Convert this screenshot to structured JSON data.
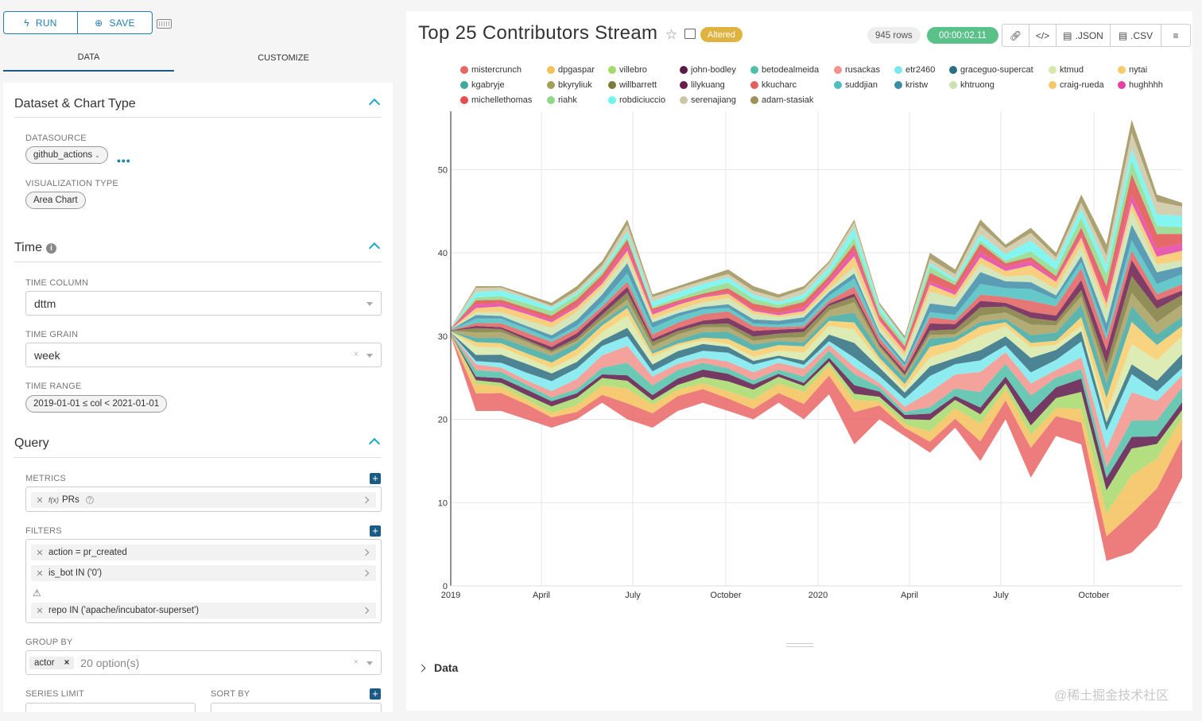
{
  "toolbar": {
    "run_label": "RUN",
    "save_label": "SAVE",
    "run_icon": "bolt-icon",
    "save_icon": "plus-circle-icon"
  },
  "tabs": [
    {
      "label": "DATA"
    },
    {
      "label": "CUSTOMIZE"
    }
  ],
  "dataset_section": {
    "title": "Dataset & Chart Type",
    "datasource_label": "DATASOURCE",
    "datasource_value": "github_actions",
    "viz_type_label": "VISUALIZATION TYPE",
    "viz_type_value": "Area Chart"
  },
  "time_section": {
    "title": "Time",
    "column_label": "TIME COLUMN",
    "column_value": "dttm",
    "grain_label": "TIME GRAIN",
    "grain_value": "week",
    "range_label": "TIME RANGE",
    "range_value": "2019-01-01 ≤ col < 2021-01-01"
  },
  "query_section": {
    "title": "Query",
    "metrics_label": "METRICS",
    "metric_value": "PRs",
    "metric_prefix": "f(x)",
    "filters_label": "FILTERS",
    "filters": [
      "action = pr_created",
      "is_bot IN ('0')",
      "repo IN ('apache/incubator-superset')"
    ],
    "groupby_label": "GROUP BY",
    "groupby_tag": "actor",
    "groupby_placeholder": "20 option(s)",
    "series_limit_label": "SERIES LIMIT",
    "sort_by_label": "SORT BY"
  },
  "header": {
    "title": "Top 25 Contributors Stream",
    "altered_label": "Altered",
    "rows_label": "945 rows",
    "timer_label": "00:00:02.11",
    "json_label": ".JSON",
    "csv_label": ".CSV"
  },
  "data_section_label": "Data",
  "watermark": "@稀土掘金技术社区",
  "colors": {
    "accent": "#1f7fb1",
    "tab_underline": "#1a5b86",
    "altered": "#e0b340",
    "timer": "#5ac189"
  },
  "chart_data": {
    "type": "area",
    "title": "Top 25 Contributors Stream",
    "x_ticks": [
      "2019",
      "April",
      "July",
      "October",
      "2020",
      "April",
      "July",
      "October"
    ],
    "y_ticks": [
      0,
      10,
      20,
      30,
      40,
      50
    ],
    "ylim": [
      0,
      57
    ],
    "xlabel": "",
    "ylabel": "",
    "grid": true,
    "legend_position": "top",
    "series": [
      {
        "name": "mistercrunch",
        "color": "#ea6565",
        "weight": 4.2
      },
      {
        "name": "dpgaspar",
        "color": "#f4c05b",
        "weight": 2.6
      },
      {
        "name": "villebro",
        "color": "#a6d96a",
        "weight": 2.0
      },
      {
        "name": "john-bodley",
        "color": "#5c1848",
        "weight": 1.6
      },
      {
        "name": "betodealmeida",
        "color": "#4fbfa8",
        "weight": 2.0
      },
      {
        "name": "rusackas",
        "color": "#f1928b",
        "weight": 2.4
      },
      {
        "name": "etr2460",
        "color": "#7ae8ec",
        "weight": 2.2
      },
      {
        "name": "graceguo-supercat",
        "color": "#2d6e80",
        "weight": 2.0
      },
      {
        "name": "ktmud",
        "color": "#d7e7a8",
        "weight": 2.0
      },
      {
        "name": "nytai",
        "color": "#f7cb6a",
        "weight": 1.6
      },
      {
        "name": "kgabryje",
        "color": "#3fa8a0",
        "weight": 1.6
      },
      {
        "name": "bkyryliuk",
        "color": "#a69e5c",
        "weight": 1.4
      },
      {
        "name": "willbarrett",
        "color": "#7e7a3c",
        "weight": 1.2
      },
      {
        "name": "lilykuang",
        "color": "#6a1c4c",
        "weight": 1.2
      },
      {
        "name": "kkucharc",
        "color": "#e0605e",
        "weight": 1.4
      },
      {
        "name": "suddjian",
        "color": "#4bbfc0",
        "weight": 1.4
      },
      {
        "name": "kristw",
        "color": "#3e8ca7",
        "weight": 1.4
      },
      {
        "name": "khtruong",
        "color": "#cbe2b0",
        "weight": 1.6
      },
      {
        "name": "craig-rueda",
        "color": "#f6c767",
        "weight": 1.4
      },
      {
        "name": "hughhhh",
        "color": "#e440a5",
        "weight": 0.8
      },
      {
        "name": "michellethomas",
        "color": "#e24f4f",
        "weight": 1.4
      },
      {
        "name": "riahk",
        "color": "#8fd888",
        "weight": 1.2
      },
      {
        "name": "robdiciuccio",
        "color": "#6ff4f0",
        "weight": 1.4
      },
      {
        "name": "serenajiang",
        "color": "#cdc6a4",
        "weight": 1.2
      },
      {
        "name": "adam-stasiak",
        "color": "#9e9157",
        "weight": 1.0
      }
    ],
    "legend_order": [
      "mistercrunch",
      "dpgaspar",
      "villebro",
      "john-bodley",
      "betodealmeida",
      "rusackas",
      "etr2460",
      "graceguo-supercat",
      "ktmud",
      "nytai",
      "kgabryje",
      "bkyryliuk",
      "willbarrett",
      "lilykuang",
      "kkucharc",
      "suddjian",
      "kristw",
      "khtruong",
      "craig-rueda",
      "hughhhh",
      "michellethomas",
      "riahk",
      "robdiciuccio",
      "serenajiang",
      "adam-stasiak"
    ],
    "stream_upper": [
      31,
      36,
      36,
      35,
      34,
      36,
      39,
      44,
      35,
      36,
      37,
      38,
      36,
      35,
      36,
      39,
      44,
      34,
      30,
      40,
      38,
      44,
      41,
      43,
      40,
      47,
      41,
      56,
      47,
      46
    ],
    "stream_lower": [
      30,
      21,
      21,
      20,
      19,
      20,
      22,
      20,
      19,
      21,
      22,
      21,
      20,
      22,
      20,
      23,
      17,
      20,
      18,
      16,
      19,
      15,
      20,
      13,
      18,
      17,
      3,
      4,
      7,
      13
    ]
  }
}
